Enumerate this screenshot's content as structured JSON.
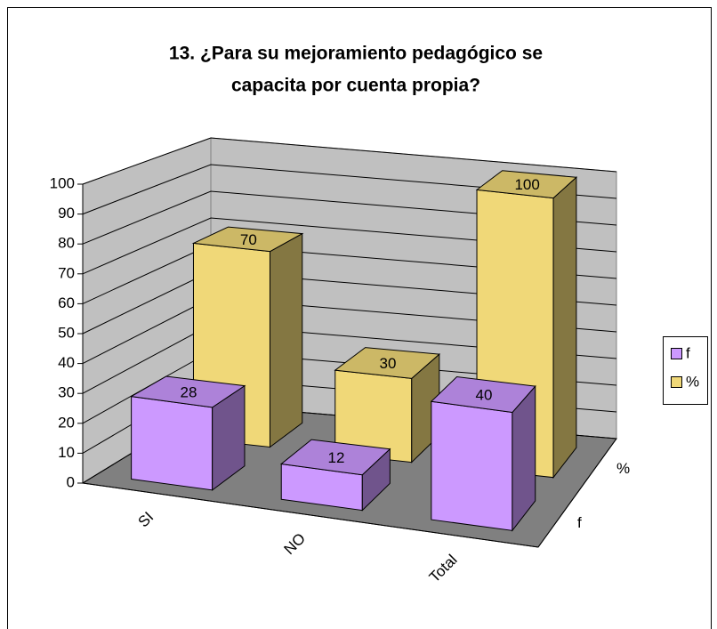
{
  "chart_data": {
    "type": "bar3d",
    "title": [
      "13. ¿Para su mejoramiento pedagógico se",
      "capacita por cuenta propia?"
    ],
    "categories": [
      "SI",
      "NO",
      "Total"
    ],
    "series": [
      {
        "name": "f",
        "color": "#cc99ff",
        "values": [
          28,
          12,
          40
        ]
      },
      {
        "name": "%",
        "color": "#f0d878",
        "values": [
          70,
          30,
          100
        ]
      }
    ],
    "ylim": [
      0,
      100
    ],
    "yticks": [
      0,
      10,
      20,
      30,
      40,
      50,
      60,
      70,
      80,
      90,
      100
    ],
    "grid": true,
    "legend": "right"
  }
}
